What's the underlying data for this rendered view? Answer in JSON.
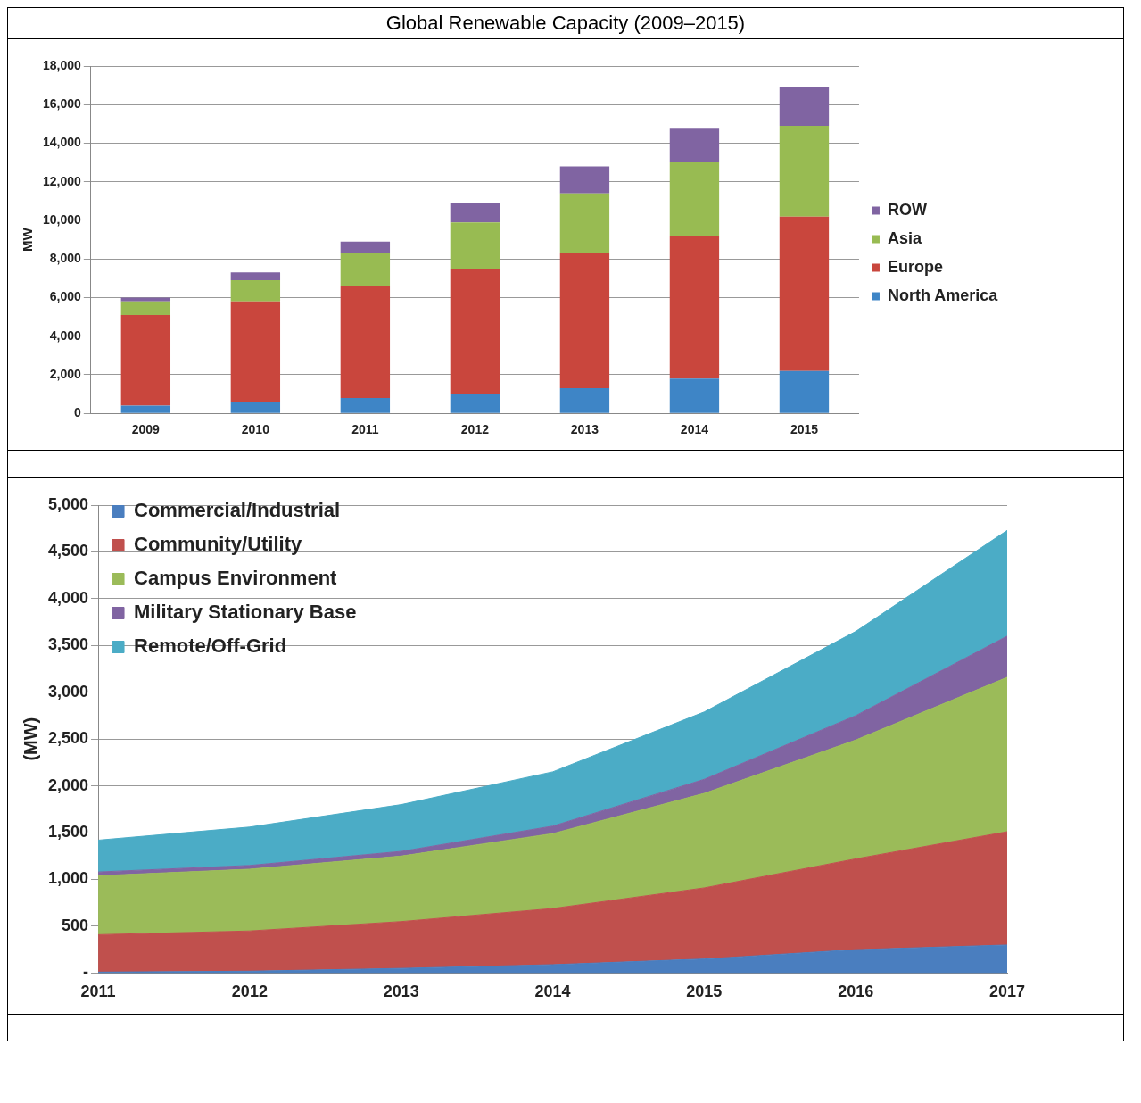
{
  "chart_data": [
    {
      "type": "bar",
      "title": "Global Renewable Capacity (2009–2015)",
      "ylabel": "MW",
      "categories": [
        "2009",
        "2010",
        "2011",
        "2012",
        "2013",
        "2014",
        "2015"
      ],
      "stacked": true,
      "series": [
        {
          "name": "North America",
          "color": "#3e85c6",
          "values": [
            400,
            600,
            800,
            1000,
            1300,
            1800,
            2200
          ]
        },
        {
          "name": "Europe",
          "color": "#c9463d",
          "values": [
            4700,
            5200,
            5800,
            6500,
            7000,
            7400,
            8000
          ]
        },
        {
          "name": "Asia",
          "color": "#98bb52",
          "values": [
            700,
            1100,
            1700,
            2400,
            3100,
            3800,
            4700
          ]
        },
        {
          "name": "ROW",
          "color": "#8064a2",
          "values": [
            200,
            400,
            600,
            1000,
            1400,
            1800,
            2000
          ]
        }
      ],
      "ylim": [
        0,
        18000
      ],
      "yticks": [
        0,
        {
          "value": 2000,
          "label": "2,000"
        },
        {
          "value": 4000,
          "label": "4,000"
        },
        {
          "value": 6000,
          "label": "6,000"
        },
        {
          "value": 8000,
          "label": "8,000"
        },
        {
          "value": 10000,
          "label": "10,000"
        },
        {
          "value": 12000,
          "label": "12,000"
        },
        {
          "value": 14000,
          "label": "14,000"
        },
        {
          "value": 16000,
          "label": "16,000"
        },
        {
          "value": 18000,
          "label": "18,000"
        }
      ],
      "grid": "y",
      "legend": "right"
    },
    {
      "type": "area",
      "ylabel": "(MW)",
      "categories": [
        "2011",
        "2012",
        "2013",
        "2014",
        "2015",
        "2016",
        "2017"
      ],
      "stacked": true,
      "series": [
        {
          "name": "Commercial/Industrial",
          "color": "#4a7ebf",
          "values": [
            10,
            20,
            50,
            90,
            150,
            250,
            300
          ]
        },
        {
          "name": "Community/Utility",
          "color": "#c0504d",
          "values": [
            400,
            430,
            500,
            600,
            760,
            970,
            1210
          ]
        },
        {
          "name": "Campus Environment",
          "color": "#9bbb59",
          "values": [
            630,
            660,
            700,
            800,
            1010,
            1270,
            1650
          ]
        },
        {
          "name": "Military Stationary Base",
          "color": "#8064a2",
          "values": [
            40,
            40,
            50,
            80,
            150,
            260,
            440
          ]
        },
        {
          "name": "Remote/Off-Grid",
          "color": "#4bacc6",
          "values": [
            340,
            410,
            500,
            580,
            720,
            900,
            1130
          ]
        }
      ],
      "ylim": [
        0,
        5000
      ],
      "yticks": [
        {
          "value": 0,
          "label": "-"
        },
        500,
        {
          "value": 1000,
          "label": "1,000"
        },
        {
          "value": 1500,
          "label": "1,500"
        },
        {
          "value": 2000,
          "label": "2,000"
        },
        {
          "value": 2500,
          "label": "2,500"
        },
        {
          "value": 3000,
          "label": "3,000"
        },
        {
          "value": 3500,
          "label": "3,500"
        },
        {
          "value": 4000,
          "label": "4,000"
        },
        {
          "value": 4500,
          "label": "4,500"
        },
        {
          "value": 5000,
          "label": "5,000"
        }
      ],
      "grid": "y",
      "legend": "top left"
    }
  ]
}
